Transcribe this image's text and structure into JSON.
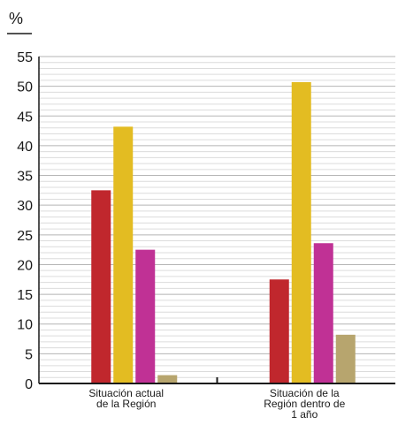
{
  "chart_data": {
    "type": "bar",
    "unit": "%",
    "categories": [
      [
        "Situación actual",
        "de la Región"
      ],
      [
        "Situación de la",
        "Región dentro de",
        "1 año"
      ]
    ],
    "series": [
      {
        "values": [
          32.5,
          17.5
        ],
        "color": "#c0272d"
      },
      {
        "values": [
          43.2,
          50.7
        ],
        "color": "#e3bc22"
      },
      {
        "values": [
          22.5,
          23.6
        ],
        "color": "#c03195"
      },
      {
        "values": [
          1.4,
          8.2
        ],
        "color": "#b7a56e"
      }
    ],
    "ylim": [
      0,
      55
    ],
    "yticks": [
      0,
      5,
      10,
      15,
      20,
      25,
      30,
      35,
      40,
      45,
      50,
      55
    ],
    "grid": true,
    "legend": "none"
  }
}
